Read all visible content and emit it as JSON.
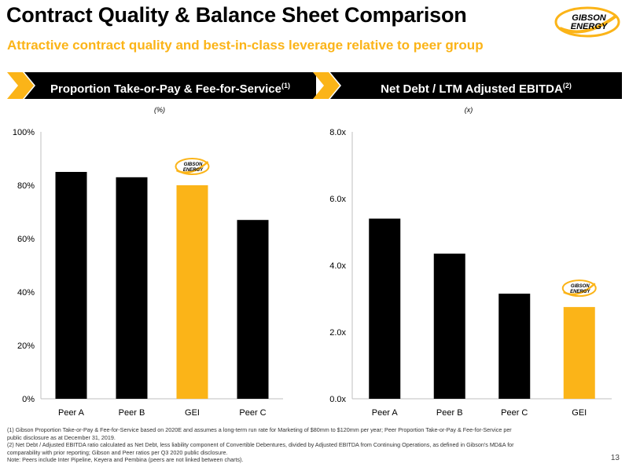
{
  "header": {
    "title": "Contract Quality & Balance Sheet Comparison",
    "subtitle": "Attractive contract quality and best-in-class leverage relative to peer group"
  },
  "logo": {
    "line1": "GIBSON",
    "line2": "ENERGY"
  },
  "colors": {
    "accent": "#fbb418",
    "bar": "#000000",
    "gei_bar": "#fbb418"
  },
  "left_panel": {
    "banner_text": "Proportion Take-or-Pay & Fee-for-Service",
    "banner_sup": "(1)",
    "unit": "(%)"
  },
  "right_panel": {
    "banner_text": "Net Debt / LTM Adjusted EBITDA",
    "banner_sup": "(2)",
    "unit": "(x)"
  },
  "chart_data": [
    {
      "type": "bar",
      "title": "Proportion Take-or-Pay & Fee-for-Service",
      "categories": [
        "Peer A",
        "Peer B",
        "GEI",
        "Peer C"
      ],
      "values": [
        85,
        83,
        80,
        67
      ],
      "highlight": "GEI",
      "ylim": [
        0,
        100
      ],
      "yticks": [
        0,
        20,
        40,
        60,
        80,
        100
      ],
      "ytick_labels": [
        "0%",
        "20%",
        "40%",
        "60%",
        "80%",
        "100%"
      ],
      "grid": false
    },
    {
      "type": "bar",
      "title": "Net Debt / LTM Adjusted EBITDA",
      "categories": [
        "Peer A",
        "Peer B",
        "Peer C",
        "GEI"
      ],
      "values": [
        5.4,
        4.35,
        3.15,
        2.75
      ],
      "highlight": "GEI",
      "ylim": [
        0,
        8
      ],
      "yticks": [
        0,
        2,
        4,
        6,
        8
      ],
      "ytick_labels": [
        "0.0x",
        "2.0x",
        "4.0x",
        "6.0x",
        "8.0x"
      ],
      "grid": false
    }
  ],
  "footnotes": [
    "(1) Gibson Proportion Take-or-Pay & Fee-for-Service based on 2020E and assumes a long-term run rate for Marketing of $80mm to $120mm per year; Peer Proportion Take-or-Pay & Fee-for-Service per",
    "public disclosure as at December 31, 2019.",
    "(2) Net Debt / Adjusted EBITDA ratio calculated as Net Debt, less liability component of Convertible Debentures, divided by Adjusted EBITDA from Continuing Operations, as defined in Gibson's MD&A for",
    "comparability with prior reporting; Gibson and Peer ratios per Q3 2020 public disclosure.",
    "Note: Peers include Inter Pipeline, Keyera and Pembina (peers are not linked between charts)."
  ],
  "page_number": "13"
}
